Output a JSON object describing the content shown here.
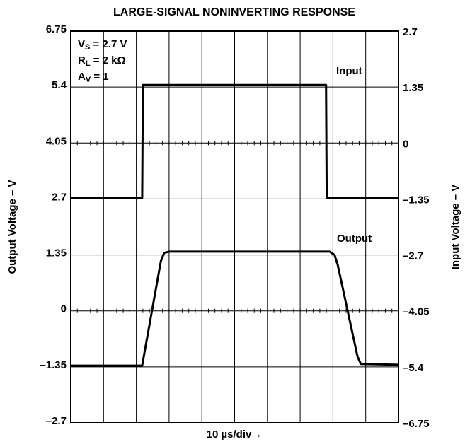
{
  "chart_data": {
    "type": "line",
    "title": "LARGE-SIGNAL NONINVERTING RESPONSE",
    "x_label": "10 µs/div→",
    "y_label": "Output Voltage – V",
    "y2_label": "Input Voltage – V",
    "annotations": [
      {
        "text": "V",
        "sub": "S",
        "rest": " = 2.7 V"
      },
      {
        "text": "R",
        "sub": "L",
        "rest": " = 2 kΩ"
      },
      {
        "text": "A",
        "sub": "V",
        "rest": " = 1"
      }
    ],
    "series_labels": [
      "Input",
      "Output"
    ],
    "xlim": [
      0,
      100
    ],
    "xticks": [
      0,
      10,
      20,
      30,
      40,
      50,
      60,
      70,
      80,
      90,
      100
    ],
    "ylim": [
      -2.7,
      6.75
    ],
    "yticks": [
      {
        "value": -2.7,
        "label": "–2.7"
      },
      {
        "value": -1.35,
        "label": "–1.35"
      },
      0,
      1.35,
      2.7,
      4.05,
      5.4,
      6.75
    ],
    "y2lim": [
      -6.75,
      2.7
    ],
    "y2ticks": [
      {
        "value": -6.75,
        "label": "–6.75"
      },
      {
        "value": -5.4,
        "label": "–5.4"
      },
      {
        "value": -4.05,
        "label": "–4.05"
      },
      {
        "value": -2.7,
        "label": "–2.7"
      },
      {
        "value": -1.35,
        "label": "–1.35"
      },
      0,
      1.35,
      2.7
    ],
    "grid": true,
    "series": [
      {
        "name": "Input",
        "color": "#000000",
        "axis": "y2",
        "x": [
          0,
          21.8,
          22.0,
          77.9,
          78.1,
          100
        ],
        "values": [
          -1.32,
          -1.32,
          1.4,
          1.4,
          -1.32,
          -1.32
        ]
      },
      {
        "name": "Output",
        "color": "#000000",
        "x": [
          0,
          21.8,
          22.5,
          27.5,
          28.5,
          30,
          79,
          80.5,
          81.5,
          87.5,
          88.5,
          100
        ],
        "values": [
          -1.32,
          -1.32,
          -1.0,
          1.2,
          1.4,
          1.43,
          1.43,
          1.35,
          1.1,
          -1.1,
          -1.28,
          -1.3
        ]
      }
    ]
  }
}
